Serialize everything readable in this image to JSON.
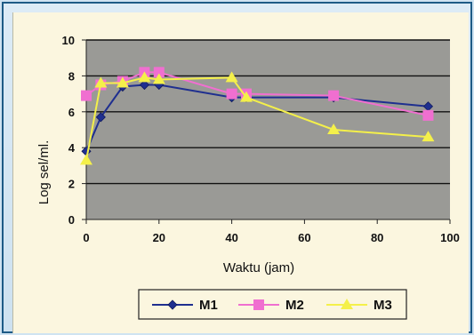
{
  "chart_data": {
    "type": "line",
    "title": "",
    "xlabel": "Waktu (jam)",
    "ylabel": "Log sel/ml.",
    "xlim": [
      0,
      100
    ],
    "ylim": [
      0,
      10
    ],
    "xticks": [
      0,
      20,
      40,
      60,
      80,
      100
    ],
    "yticks": [
      0,
      2,
      4,
      6,
      8,
      10
    ],
    "grid": "horizontal",
    "legend": "bottom",
    "series": [
      {
        "name": "M1",
        "color": "#1f2f8f",
        "marker": "diamond",
        "x": [
          0,
          4,
          10,
          16,
          20,
          40,
          44,
          68,
          94
        ],
        "y": [
          3.8,
          5.7,
          7.4,
          7.5,
          7.5,
          6.8,
          6.8,
          6.8,
          6.3
        ]
      },
      {
        "name": "M2",
        "color": "#f06fd0",
        "marker": "square",
        "x": [
          0,
          4,
          10,
          16,
          20,
          40,
          44,
          68,
          94
        ],
        "y": [
          6.9,
          7.5,
          7.7,
          8.2,
          8.2,
          7.0,
          7.0,
          6.9,
          5.8
        ]
      },
      {
        "name": "M3",
        "color": "#f4f04a",
        "marker": "triangle",
        "x": [
          0,
          4,
          10,
          16,
          20,
          40,
          44,
          68,
          94
        ],
        "y": [
          3.3,
          7.6,
          7.6,
          7.9,
          7.8,
          7.9,
          6.8,
          5.0,
          4.6
        ]
      }
    ]
  }
}
